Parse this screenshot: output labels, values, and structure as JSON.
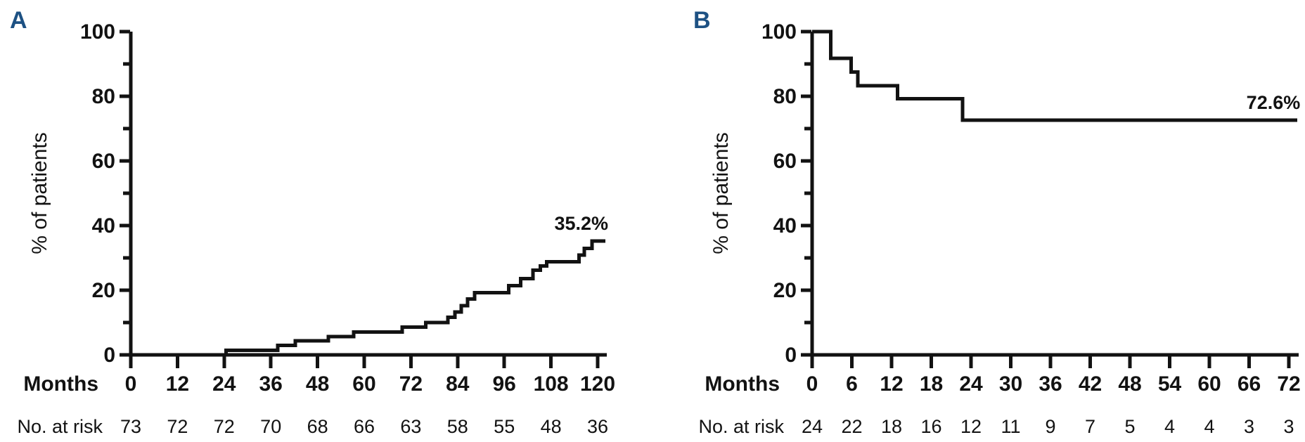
{
  "figure": {
    "background": "#ffffff",
    "panel_label_color": "#1d5183",
    "line_color": "#121212"
  },
  "chart_data": [
    {
      "panel_label": "A",
      "type": "line",
      "subtype": "kaplan-meier-step",
      "title": "",
      "xlabel": "Months",
      "ylabel": "% of patients",
      "risk_label": "No. at risk",
      "end_label": "35.2%",
      "end_value": 35.2,
      "xlim": [
        0,
        122
      ],
      "ylim": [
        0,
        100
      ],
      "x_ticks": [
        0,
        12,
        24,
        36,
        48,
        60,
        72,
        84,
        96,
        108,
        120
      ],
      "y_ticks_major": [
        0,
        20,
        40,
        60,
        80,
        100
      ],
      "y_ticks_minor": [
        10,
        30,
        50,
        70,
        90
      ],
      "grid": false,
      "legend": "none",
      "step_points": [
        [
          0,
          0
        ],
        [
          24.5,
          1.4
        ],
        [
          37.8,
          2.9
        ],
        [
          42.3,
          4.3
        ],
        [
          50.8,
          5.7
        ],
        [
          57.3,
          7.1
        ],
        [
          69.8,
          8.6
        ],
        [
          75.8,
          10.0
        ],
        [
          81.5,
          11.6
        ],
        [
          83.3,
          13.3
        ],
        [
          84.9,
          15.2
        ],
        [
          86.6,
          17.3
        ],
        [
          88.4,
          19.2
        ],
        [
          97.1,
          21.4
        ],
        [
          100.2,
          23.6
        ],
        [
          103.4,
          26.2
        ],
        [
          105.3,
          27.5
        ],
        [
          106.9,
          28.8
        ],
        [
          115.2,
          30.9
        ],
        [
          116.6,
          32.9
        ],
        [
          118.6,
          35.2
        ],
        [
          122,
          35.2
        ]
      ],
      "no_at_risk": [
        73,
        72,
        72,
        70,
        68,
        66,
        63,
        58,
        55,
        48,
        36
      ]
    },
    {
      "panel_label": "B",
      "type": "line",
      "subtype": "kaplan-meier-step",
      "title": "",
      "xlabel": "Months",
      "ylabel": "% of patients",
      "risk_label": "No. at risk",
      "end_label": "72.6%",
      "end_value": 72.6,
      "xlim": [
        0,
        73.3
      ],
      "ylim": [
        0,
        100
      ],
      "x_ticks": [
        0,
        6,
        12,
        18,
        24,
        30,
        36,
        42,
        48,
        54,
        60,
        66,
        72
      ],
      "y_ticks_major": [
        0,
        20,
        40,
        60,
        80,
        100
      ],
      "y_ticks_minor": [
        10,
        30,
        50,
        70,
        90
      ],
      "grid": false,
      "legend": "none",
      "step_points": [
        [
          0,
          100
        ],
        [
          2.8,
          91.7
        ],
        [
          5.9,
          87.5
        ],
        [
          6.9,
          83.3
        ],
        [
          12.9,
          79.2
        ],
        [
          22.7,
          72.6
        ],
        [
          73.3,
          72.6
        ]
      ],
      "no_at_risk": [
        24,
        22,
        18,
        16,
        12,
        11,
        9,
        7,
        5,
        4,
        4,
        3,
        3
      ]
    }
  ]
}
